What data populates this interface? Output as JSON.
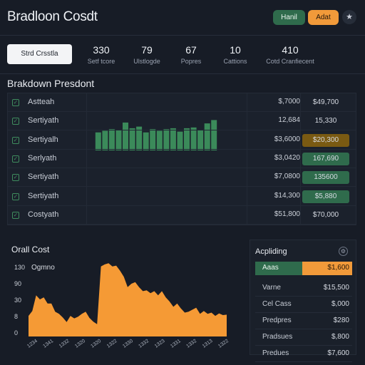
{
  "header": {
    "title": "Bradloon Cosdt",
    "buttons": {
      "hard": "Hanil",
      "adat": "Adat",
      "star_icon": "star-icon"
    }
  },
  "stats": {
    "select_label": "Strd Crsstla",
    "items": [
      {
        "value": "330",
        "label": "Setf tcore"
      },
      {
        "value": "79",
        "label": "Ulstlogde"
      },
      {
        "value": "67",
        "label": "Popres"
      },
      {
        "value": "10",
        "label": "Cattions"
      },
      {
        "value": "410",
        "label": "Cotd Cranfiecent"
      }
    ]
  },
  "breakdown": {
    "title": "Brakdown Presdont",
    "rows": [
      {
        "name": "Astteah",
        "col1": "$,7000",
        "col2": "$49,700",
        "col2_style": "plain"
      },
      {
        "name": "Sertiyath",
        "col1": "12,684",
        "col2": "15,330",
        "col2_style": "plain"
      },
      {
        "name": "Sertiyalh",
        "col1": "$3,6000",
        "col2": "$20,300",
        "col2_style": "gold"
      },
      {
        "name": "Serlyath",
        "col1": "$3,0420",
        "col2": "167,690",
        "col2_style": "green"
      },
      {
        "name": "Sertiyath",
        "col1": "$7,0800",
        "col2": "135600",
        "col2_style": "green"
      },
      {
        "name": "Sertiyath",
        "col1": "$14,300",
        "col2": "$5,880",
        "col2_style": "green"
      },
      {
        "name": "Costyath",
        "col1": "$51,800",
        "col2": "$70,000",
        "col2_style": "plain"
      }
    ],
    "sparkline_values": [
      22,
      24,
      26,
      25,
      34,
      27,
      29,
      22,
      26,
      24,
      26,
      27,
      23,
      27,
      28,
      25,
      33,
      37
    ]
  },
  "overall_cost": {
    "title": "Orall Cost",
    "ylabel": "Ogmno",
    "yticks": [
      "130",
      "90",
      "30",
      "8",
      "0"
    ],
    "xticks": [
      "1234",
      "1341",
      "1332",
      "1320",
      "1320",
      "1322",
      "1330",
      "1332",
      "1323",
      "1331",
      "1332",
      "1313",
      "1322"
    ],
    "series": [
      50,
      62,
      100,
      90,
      95,
      80,
      80,
      60,
      55,
      46,
      35,
      50,
      44,
      48,
      55,
      60,
      45,
      36,
      30,
      170,
      175,
      178,
      170,
      172,
      160,
      145,
      120,
      128,
      132,
      120,
      110,
      112,
      105,
      110,
      100,
      110,
      95,
      85,
      72,
      80,
      68,
      58,
      60,
      65,
      70,
      55,
      62,
      55,
      58,
      50,
      56,
      52,
      53
    ]
  },
  "side": {
    "title": "Acpliding",
    "gear_icon": "gear-icon",
    "highlight": {
      "key": "Aaas",
      "value": "$1,600"
    },
    "rows": [
      {
        "key": "Varne",
        "value": "$15,500"
      },
      {
        "key": "Cel Cass",
        "value": "$,000"
      },
      {
        "key": "Predpres",
        "value": "$280"
      },
      {
        "key": "Pradsues",
        "value": "$,800"
      },
      {
        "key": "Predues",
        "value": "$7,600"
      }
    ]
  },
  "colors": {
    "accent_green": "#2f6b4c",
    "accent_orange": "#f19a3a",
    "gold": "#7a5a12",
    "background": "#171c26"
  }
}
